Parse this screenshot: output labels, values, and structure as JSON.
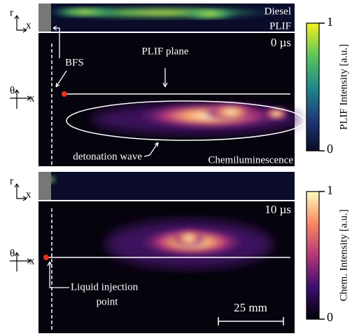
{
  "top": {
    "plif_label_1": "Diesel",
    "plif_label_2": "PLIF",
    "time": "0 µs",
    "bfs": "BFS",
    "plif_plane": "PLIF plane",
    "wave": "detonation wave",
    "chem": "Chemiluminescence",
    "axis_r": "r",
    "axis_x1": "x",
    "axis_theta": "θ",
    "axis_x2": "x"
  },
  "bottom": {
    "time": "10 µs",
    "injection_1": "Liquid injection",
    "injection_2": "point",
    "scale": "25 mm",
    "axis_r": "r",
    "axis_x1": "x",
    "axis_theta": "θ",
    "axis_x2": "x"
  },
  "colorbars": [
    {
      "label": "PLIF Intensity [a.u.]",
      "max": 1,
      "min": 0
    },
    {
      "label": "Chem. Intensity [a.u.]",
      "max": 1,
      "min": 0
    }
  ]
}
